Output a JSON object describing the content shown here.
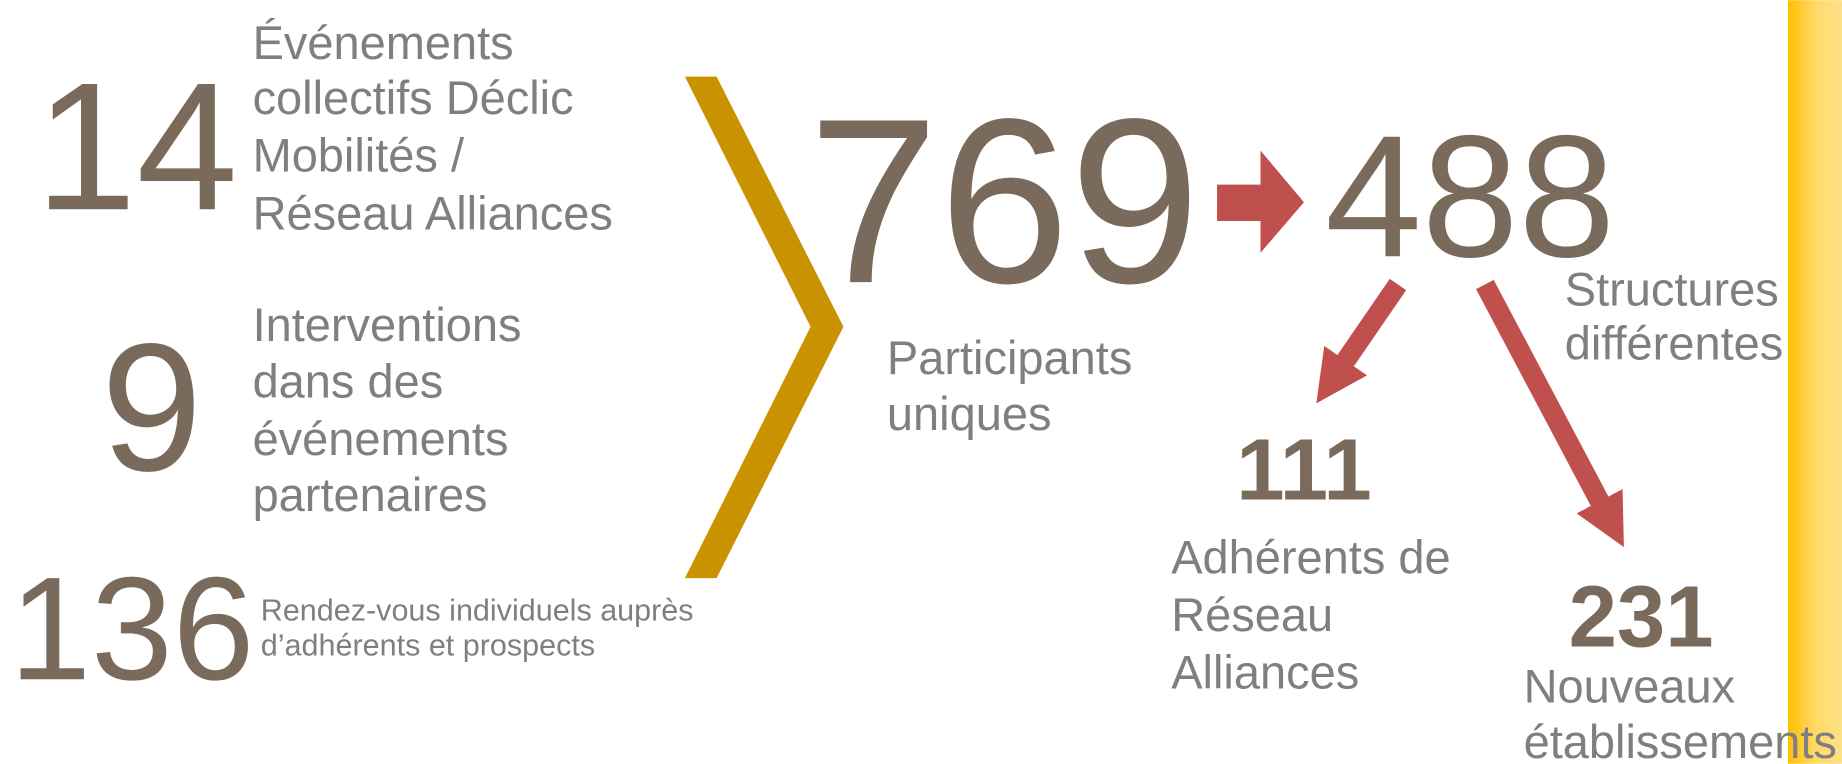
{
  "stats": [
    {
      "number": 14,
      "label_lines": [
        "Événements",
        "collectifs Déclic",
        "Mobilités /",
        "Réseau Alliances"
      ]
    },
    {
      "number": 9,
      "label_lines": [
        "Interventions",
        "dans des",
        "événements",
        "partenaires"
      ]
    },
    {
      "number": 136,
      "label_lines": [
        "Rendez-vous individuels auprès",
        "d’adhérents et prospects"
      ]
    }
  ],
  "total": {
    "number": 769,
    "label_lines": [
      "Participants",
      "uniques"
    ]
  },
  "structures": {
    "number": 488,
    "label_lines": [
      "Structures",
      "différentes"
    ]
  },
  "members": {
    "number": 111,
    "label_lines": [
      "Adhérents de",
      "Réseau",
      "Alliances"
    ]
  },
  "new_establishments": {
    "number": 231,
    "label_lines": [
      "Nouveaux",
      "établissements"
    ]
  }
}
